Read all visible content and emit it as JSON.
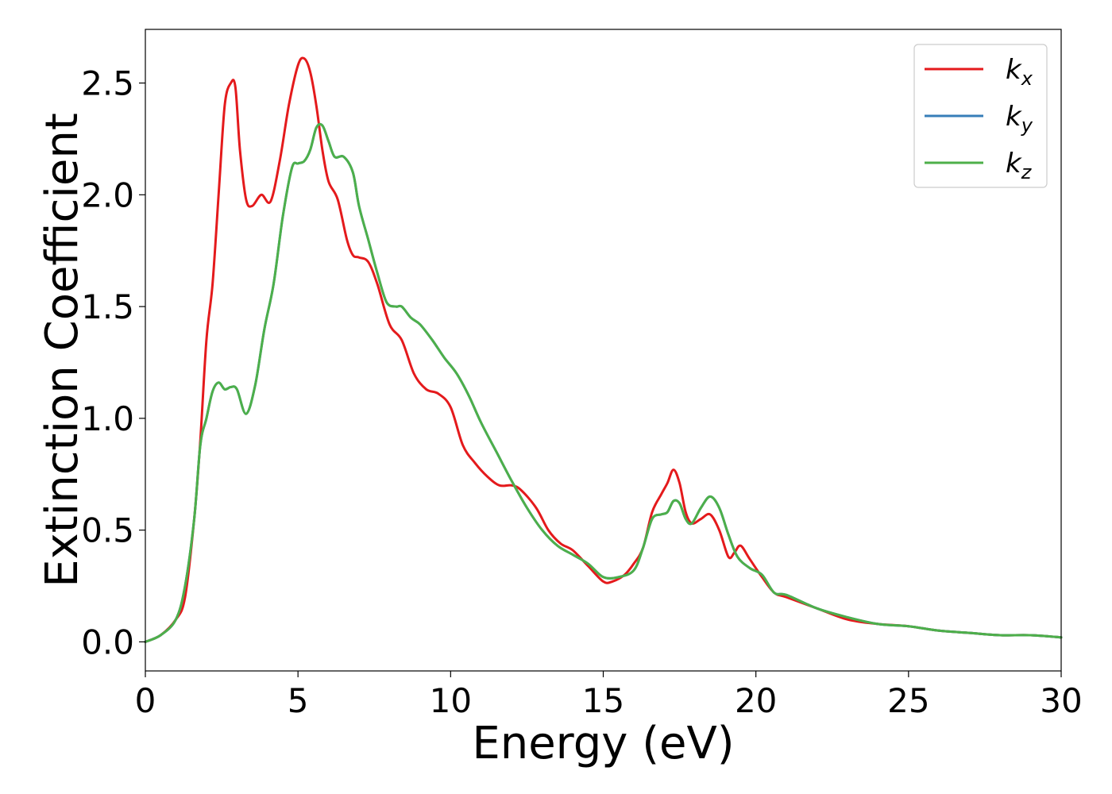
{
  "chart_data": {
    "type": "line",
    "title": "",
    "xlabel": "Energy (eV)",
    "ylabel": "Extinction Coefficient",
    "xlim": [
      0,
      30
    ],
    "ylim": [
      -0.13,
      2.74
    ],
    "xticks": [
      0,
      5,
      10,
      15,
      20,
      25,
      30
    ],
    "xtick_labels": [
      "0",
      "5",
      "10",
      "15",
      "20",
      "25",
      "30"
    ],
    "yticks": [
      0.0,
      0.5,
      1.0,
      1.5,
      2.0,
      2.5
    ],
    "ytick_labels": [
      "0.0",
      "0.5",
      "1.0",
      "1.5",
      "2.0",
      "2.5"
    ],
    "grid": false,
    "legend_position": "top-right",
    "series": [
      {
        "name": "k_x",
        "label_base": "k",
        "label_sub": "x",
        "color": "#e41a1c",
        "x": [
          0,
          0.5,
          1.0,
          1.3,
          1.6,
          1.8,
          2.0,
          2.2,
          2.4,
          2.6,
          2.8,
          2.95,
          3.1,
          3.3,
          3.5,
          3.8,
          4.1,
          4.4,
          4.7,
          5.0,
          5.2,
          5.4,
          5.6,
          5.8,
          6.0,
          6.3,
          6.6,
          6.8,
          7.0,
          7.3,
          7.6,
          8.0,
          8.4,
          8.8,
          9.2,
          9.6,
          10.0,
          10.4,
          10.8,
          11.2,
          11.6,
          12.0,
          12.3,
          12.8,
          13.2,
          13.6,
          14.0,
          14.5,
          15.0,
          15.3,
          15.7,
          16.0,
          16.3,
          16.6,
          16.9,
          17.1,
          17.3,
          17.5,
          17.7,
          17.9,
          18.2,
          18.5,
          18.8,
          19.1,
          19.3,
          19.5,
          19.8,
          20.2,
          20.6,
          21.0,
          22.0,
          23.0,
          24.0,
          25.0,
          26.0,
          27.0,
          28.0,
          29.0,
          30.0
        ],
        "y": [
          0.0,
          0.03,
          0.1,
          0.2,
          0.55,
          0.9,
          1.35,
          1.6,
          2.0,
          2.4,
          2.5,
          2.48,
          2.2,
          1.98,
          1.95,
          2.0,
          1.97,
          2.15,
          2.4,
          2.58,
          2.61,
          2.55,
          2.4,
          2.2,
          2.06,
          1.98,
          1.8,
          1.73,
          1.72,
          1.7,
          1.6,
          1.42,
          1.35,
          1.2,
          1.13,
          1.11,
          1.05,
          0.88,
          0.8,
          0.74,
          0.7,
          0.7,
          0.68,
          0.6,
          0.5,
          0.44,
          0.41,
          0.34,
          0.27,
          0.27,
          0.3,
          0.35,
          0.42,
          0.58,
          0.66,
          0.71,
          0.77,
          0.71,
          0.58,
          0.53,
          0.55,
          0.57,
          0.5,
          0.38,
          0.4,
          0.43,
          0.37,
          0.29,
          0.22,
          0.2,
          0.15,
          0.1,
          0.08,
          0.07,
          0.05,
          0.04,
          0.03,
          0.03,
          0.02
        ]
      },
      {
        "name": "k_y",
        "label_base": "k",
        "label_sub": "y",
        "color": "#377eb8",
        "x": [
          0,
          0.5,
          1.0,
          1.3,
          1.6,
          1.8,
          2.0,
          2.2,
          2.4,
          2.6,
          2.8,
          3.0,
          3.3,
          3.6,
          3.9,
          4.2,
          4.5,
          4.8,
          5.0,
          5.2,
          5.4,
          5.6,
          5.8,
          6.0,
          6.2,
          6.5,
          6.8,
          7.0,
          7.3,
          7.6,
          7.9,
          8.2,
          8.4,
          8.7,
          9.0,
          9.4,
          9.8,
          10.2,
          10.6,
          11.0,
          11.5,
          12.0,
          12.5,
          13.0,
          13.5,
          14.0,
          14.5,
          15.0,
          15.5,
          16.0,
          16.3,
          16.6,
          16.9,
          17.1,
          17.3,
          17.5,
          17.7,
          17.9,
          18.2,
          18.5,
          18.8,
          19.1,
          19.4,
          19.8,
          20.2,
          20.6,
          21.0,
          22.0,
          23.0,
          24.0,
          25.0,
          26.0,
          27.0,
          28.0,
          29.0,
          30.0
        ],
        "y": [
          0.0,
          0.03,
          0.1,
          0.25,
          0.55,
          0.88,
          1.0,
          1.12,
          1.16,
          1.13,
          1.14,
          1.13,
          1.02,
          1.15,
          1.4,
          1.6,
          1.9,
          2.12,
          2.14,
          2.15,
          2.2,
          2.3,
          2.31,
          2.24,
          2.17,
          2.17,
          2.1,
          1.95,
          1.8,
          1.65,
          1.52,
          1.5,
          1.5,
          1.45,
          1.42,
          1.35,
          1.27,
          1.2,
          1.1,
          0.98,
          0.85,
          0.72,
          0.6,
          0.5,
          0.43,
          0.39,
          0.35,
          0.29,
          0.29,
          0.32,
          0.42,
          0.55,
          0.57,
          0.58,
          0.63,
          0.62,
          0.55,
          0.53,
          0.6,
          0.65,
          0.6,
          0.48,
          0.38,
          0.33,
          0.3,
          0.22,
          0.21,
          0.15,
          0.11,
          0.08,
          0.07,
          0.05,
          0.04,
          0.03,
          0.03,
          0.02
        ]
      },
      {
        "name": "k_z",
        "label_base": "k",
        "label_sub": "z",
        "color": "#4daf4a",
        "x": [
          0,
          0.5,
          1.0,
          1.3,
          1.6,
          1.8,
          2.0,
          2.2,
          2.4,
          2.6,
          2.8,
          3.0,
          3.3,
          3.6,
          3.9,
          4.2,
          4.5,
          4.8,
          5.0,
          5.2,
          5.4,
          5.6,
          5.8,
          6.0,
          6.2,
          6.5,
          6.8,
          7.0,
          7.3,
          7.6,
          7.9,
          8.2,
          8.4,
          8.7,
          9.0,
          9.4,
          9.8,
          10.2,
          10.6,
          11.0,
          11.5,
          12.0,
          12.5,
          13.0,
          13.5,
          14.0,
          14.5,
          15.0,
          15.5,
          16.0,
          16.3,
          16.6,
          16.9,
          17.1,
          17.3,
          17.5,
          17.7,
          17.9,
          18.2,
          18.5,
          18.8,
          19.1,
          19.4,
          19.8,
          20.2,
          20.6,
          21.0,
          22.0,
          23.0,
          24.0,
          25.0,
          26.0,
          27.0,
          28.0,
          29.0,
          30.0
        ],
        "y": [
          0.0,
          0.03,
          0.1,
          0.25,
          0.55,
          0.88,
          1.0,
          1.12,
          1.16,
          1.13,
          1.14,
          1.13,
          1.02,
          1.15,
          1.4,
          1.6,
          1.9,
          2.12,
          2.14,
          2.15,
          2.2,
          2.3,
          2.31,
          2.24,
          2.17,
          2.17,
          2.1,
          1.95,
          1.8,
          1.65,
          1.52,
          1.5,
          1.5,
          1.45,
          1.42,
          1.35,
          1.27,
          1.2,
          1.1,
          0.98,
          0.85,
          0.72,
          0.6,
          0.5,
          0.43,
          0.39,
          0.35,
          0.29,
          0.29,
          0.32,
          0.42,
          0.55,
          0.57,
          0.58,
          0.63,
          0.62,
          0.55,
          0.53,
          0.6,
          0.65,
          0.6,
          0.48,
          0.38,
          0.33,
          0.3,
          0.22,
          0.21,
          0.15,
          0.11,
          0.08,
          0.07,
          0.05,
          0.04,
          0.03,
          0.03,
          0.02
        ]
      }
    ]
  }
}
